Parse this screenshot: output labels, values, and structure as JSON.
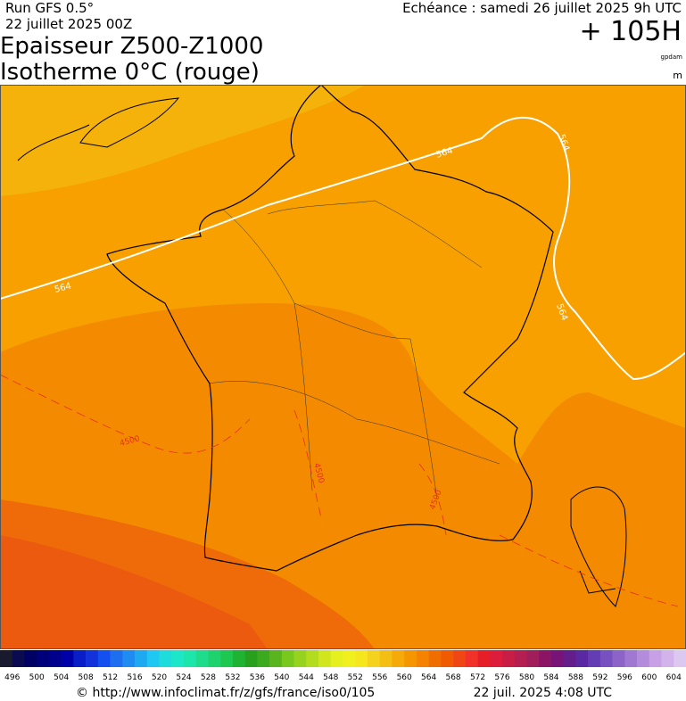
{
  "header": {
    "run": "Run GFS 0.5°",
    "run_date": "22 juillet 2025 00Z",
    "valid": "Echéance : samedi 26 juillet 2025 9h UTC",
    "lead": "+ 105H",
    "title": "Epaisseur Z500-Z1000",
    "subtitle": "Isotherme 0°C (rouge)",
    "unit_thickness": "gpdam",
    "unit_iso": "m"
  },
  "map": {
    "contours": [
      {
        "label": "564"
      },
      {
        "label": "564"
      },
      {
        "label": "564"
      },
      {
        "label": "564"
      },
      {
        "label": "4500"
      },
      {
        "label": "4500"
      },
      {
        "label": "4500"
      }
    ]
  },
  "scale": {
    "labels": [
      496,
      500,
      504,
      508,
      512,
      516,
      520,
      524,
      528,
      532,
      536,
      540,
      544,
      548,
      552,
      556,
      560,
      564,
      568,
      572,
      576,
      580,
      584,
      588,
      592,
      596,
      600,
      604
    ],
    "colors": [
      "#1a1a2e",
      "#0a0a50",
      "#000064",
      "#00007a",
      "#00008c",
      "#0000a8",
      "#0a1ec8",
      "#1432dc",
      "#1450f0",
      "#1e6ef0",
      "#1e8cf0",
      "#1eaaf0",
      "#1ec8f0",
      "#1edcdc",
      "#1ee6c8",
      "#1ee6aa",
      "#1edc8c",
      "#1ed26e",
      "#1ec850",
      "#1eb432",
      "#28a01e",
      "#3caa1e",
      "#5ab41e",
      "#78c81e",
      "#96d21e",
      "#b4dc1e",
      "#d2e61e",
      "#e6f01e",
      "#f0f01e",
      "#f5e61e",
      "#f5d21e",
      "#f5be14",
      "#f5aa0a",
      "#f59600",
      "#f58200",
      "#f06e00",
      "#f05a00",
      "#f04614",
      "#f03228",
      "#e61e28",
      "#dc1e3c",
      "#c81e46",
      "#b41e50",
      "#a01e5a",
      "#8c1464",
      "#781478",
      "#641e8c",
      "#5a28a0",
      "#643cb4",
      "#7850c0",
      "#8c64c8",
      "#a078d2",
      "#b48cdc",
      "#c8a0e6",
      "#d2b4eb",
      "#dcc8f0"
    ]
  },
  "footer": {
    "url": "© http://www.infoclimat.fr/z/gfs/france/iso0/105",
    "generated": "22 juil. 2025  4:08 UTC"
  }
}
